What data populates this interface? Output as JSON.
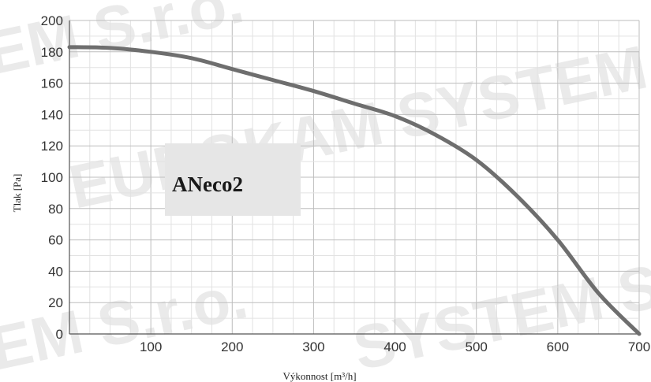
{
  "chart_data": {
    "type": "line",
    "title": "",
    "xlabel": "Výkonnost [m³/h]",
    "ylabel": "Tlak [Pa]",
    "xlim": [
      0,
      700
    ],
    "ylim": [
      0,
      200
    ],
    "x_ticks": [
      "100",
      "200",
      "300",
      "400",
      "500",
      "600",
      "700"
    ],
    "y_ticks": [
      "0",
      "20",
      "40",
      "60",
      "80",
      "100",
      "120",
      "140",
      "160",
      "180",
      "200"
    ],
    "grid": true,
    "series": [
      {
        "name": "ANeco2",
        "color": "#6e6e6e",
        "x": [
          0,
          50,
          100,
          150,
          200,
          250,
          300,
          350,
          400,
          450,
          500,
          550,
          600,
          650,
          700
        ],
        "y": [
          183,
          182.5,
          180,
          176,
          169,
          162,
          155,
          147,
          139,
          127,
          111,
          88,
          60,
          26,
          0
        ]
      }
    ],
    "legend": {
      "label": "ANeco2",
      "placement": "center-left"
    }
  },
  "watermark": {
    "lines": [
      "EM S.r.o.",
      "EUROKAM SYSTEM S.",
      "EM S.r.o.",
      "SYSTEM S.r"
    ],
    "color": "#d9d9d9"
  }
}
